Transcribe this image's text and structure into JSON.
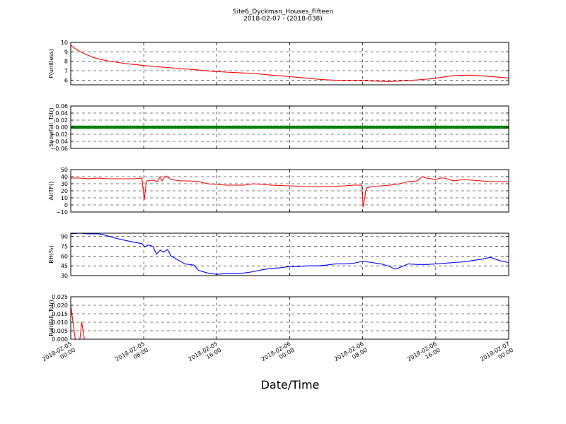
{
  "chart_data": {
    "type": "line",
    "title": "Site6_Dyckman_Houses_Fifteen",
    "subtitle": "2018-02-07 - (2018-038)",
    "xlabel": "Date/Time",
    "x_ticks": [
      [
        "2018-02-05",
        "00:00"
      ],
      [
        "2018-02-05",
        "08:00"
      ],
      [
        "2018-02-05",
        "16:00"
      ],
      [
        "2018-02-06",
        "00:00"
      ],
      [
        "2018-02-06",
        "08:00"
      ],
      [
        "2018-02-06",
        "16:00"
      ],
      [
        "2018-02-07",
        "00:00"
      ]
    ],
    "xlim_hours": [
      0,
      48
    ],
    "grid": true,
    "panels": [
      {
        "ylabel": "P(unitless)",
        "ylim": [
          5.5,
          10
        ],
        "yticks": [
          "6",
          "7",
          "8",
          "9",
          "10"
        ],
        "ytick_values": [
          6,
          7,
          8,
          9,
          10
        ],
        "color": "#ff0000",
        "marker": false,
        "series": [
          {
            "x": [
              0,
              0.5,
              1,
              1.5,
              2,
              2.5,
              3,
              4,
              5,
              6,
              7,
              8,
              9,
              10,
              11,
              12,
              13,
              14,
              15,
              16,
              17,
              18,
              19,
              20,
              21,
              22,
              23,
              24,
              25,
              26,
              27,
              28,
              29,
              30,
              31,
              32,
              33,
              34,
              35,
              36,
              37,
              38,
              39,
              40,
              41,
              42,
              43,
              44,
              45,
              46,
              47,
              48
            ],
            "y": [
              9.7,
              9.35,
              9.05,
              8.8,
              8.6,
              8.4,
              8.25,
              8.05,
              7.9,
              7.75,
              7.65,
              7.55,
              7.45,
              7.38,
              7.3,
              7.22,
              7.15,
              7.07,
              6.98,
              6.9,
              6.85,
              6.8,
              6.75,
              6.7,
              6.62,
              6.53,
              6.45,
              6.36,
              6.28,
              6.2,
              6.1,
              6.03,
              5.98,
              5.96,
              5.95,
              5.94,
              5.9,
              5.88,
              5.85,
              5.9,
              5.96,
              6.02,
              6.1,
              6.2,
              6.35,
              6.48,
              6.52,
              6.52,
              6.45,
              6.38,
              6.3,
              6.22
            ]
          }
        ]
      },
      {
        "ylabel": "Snowfall_Tot()",
        "ylim": [
          -0.06,
          0.06
        ],
        "yticks": [
          "−0.06",
          "−0.04",
          "−0.02",
          "0.00",
          "0.02",
          "0.04",
          "0.06"
        ],
        "ytick_values": [
          -0.06,
          -0.04,
          -0.02,
          0.0,
          0.02,
          0.04,
          0.06
        ],
        "color": "#008000",
        "marker": true,
        "constant": 0.0
      },
      {
        "ylabel": "AirTF()",
        "ylim": [
          -10,
          50
        ],
        "yticks": [
          "−10",
          "0",
          "10",
          "20",
          "30",
          "40",
          "50"
        ],
        "ytick_values": [
          -10,
          0,
          10,
          20,
          30,
          40,
          50
        ],
        "color": "#ff0000",
        "marker": false,
        "series": [
          {
            "x": [
              0,
              1,
              2,
              3,
              4,
              5,
              6,
              7,
              7.8,
              8.05,
              8.3,
              9,
              9.5,
              9.8,
              10,
              10.4,
              11,
              12,
              13,
              14,
              15,
              16,
              17,
              18,
              19,
              20,
              21,
              22,
              24,
              26,
              28,
              30,
              31,
              31.9,
              32.05,
              32.4,
              33,
              34,
              35,
              36,
              37,
              38,
              38.5,
              39,
              40,
              40.5,
              41,
              42,
              43,
              44,
              45,
              46,
              47,
              48
            ],
            "y": [
              38,
              38,
              37,
              38,
              37,
              37,
              37,
              37,
              38,
              7,
              34,
              35,
              33,
              40,
              34,
              41,
              36,
              34,
              34,
              33,
              30,
              29,
              28,
              28,
              28,
              30,
              29,
              28,
              27,
              26,
              26,
              27,
              28,
              28,
              -3,
              24,
              26,
              27,
              28,
              30,
              33,
              34,
              40,
              38,
              36,
              38,
              38,
              34,
              36,
              35,
              34,
              33,
              33,
              33
            ]
          }
        ]
      },
      {
        "ylabel": "RH(%)",
        "ylim": [
          30,
          95
        ],
        "yticks": [
          "30",
          "45",
          "60",
          "75",
          "90"
        ],
        "ytick_values": [
          30,
          45,
          60,
          75,
          90
        ],
        "color": "#0000ff",
        "marker": false,
        "series": [
          {
            "x": [
              0,
              1,
              2,
              3,
              3.5,
              4,
              5,
              6,
              7,
              7.8,
              8.1,
              8.5,
              9,
              9.4,
              9.8,
              10.2,
              10.6,
              11,
              12,
              12.5,
              13,
              13.5,
              14,
              15,
              16,
              17,
              18,
              19,
              20,
              21,
              22,
              23,
              24,
              25,
              26,
              27,
              28,
              29,
              30,
              31,
              32,
              33,
              34,
              35,
              35.5,
              36,
              37,
              38,
              39,
              40,
              41,
              42,
              43,
              44,
              45,
              46,
              47,
              48
            ],
            "y": [
              94,
              95,
              94,
              94,
              93,
              91,
              87,
              84,
              81,
              79,
              74,
              77,
              75,
              63,
              69,
              66,
              70,
              60,
              52,
              48,
              47,
              46,
              38,
              34,
              32,
              33,
              33,
              34,
              36,
              39,
              41,
              42,
              44,
              44,
              45,
              45,
              46,
              48,
              48,
              49,
              52,
              50,
              48,
              44,
              40,
              42,
              48,
              47,
              47,
              48,
              49,
              50,
              51,
              53,
              55,
              58,
              53,
              50
            ]
          }
        ]
      },
      {
        "ylabel": "Rainfall_Tot()",
        "ylim": [
          0,
          0.025
        ],
        "yticks": [
          "0.000",
          "0.005",
          "0.010",
          "0.015",
          "0.020",
          "0.025"
        ],
        "ytick_values": [
          0,
          0.005,
          0.01,
          0.015,
          0.02,
          0.025
        ],
        "color": "#ff0000",
        "marker": false,
        "series": [
          {
            "x": [
              0,
              0.25,
              0.5,
              1,
              1.2,
              1.5,
              2,
              48
            ],
            "y": [
              0.02,
              0.01,
              0.0,
              0.0,
              0.01,
              0.0,
              0.0,
              0.0
            ]
          }
        ]
      }
    ]
  }
}
